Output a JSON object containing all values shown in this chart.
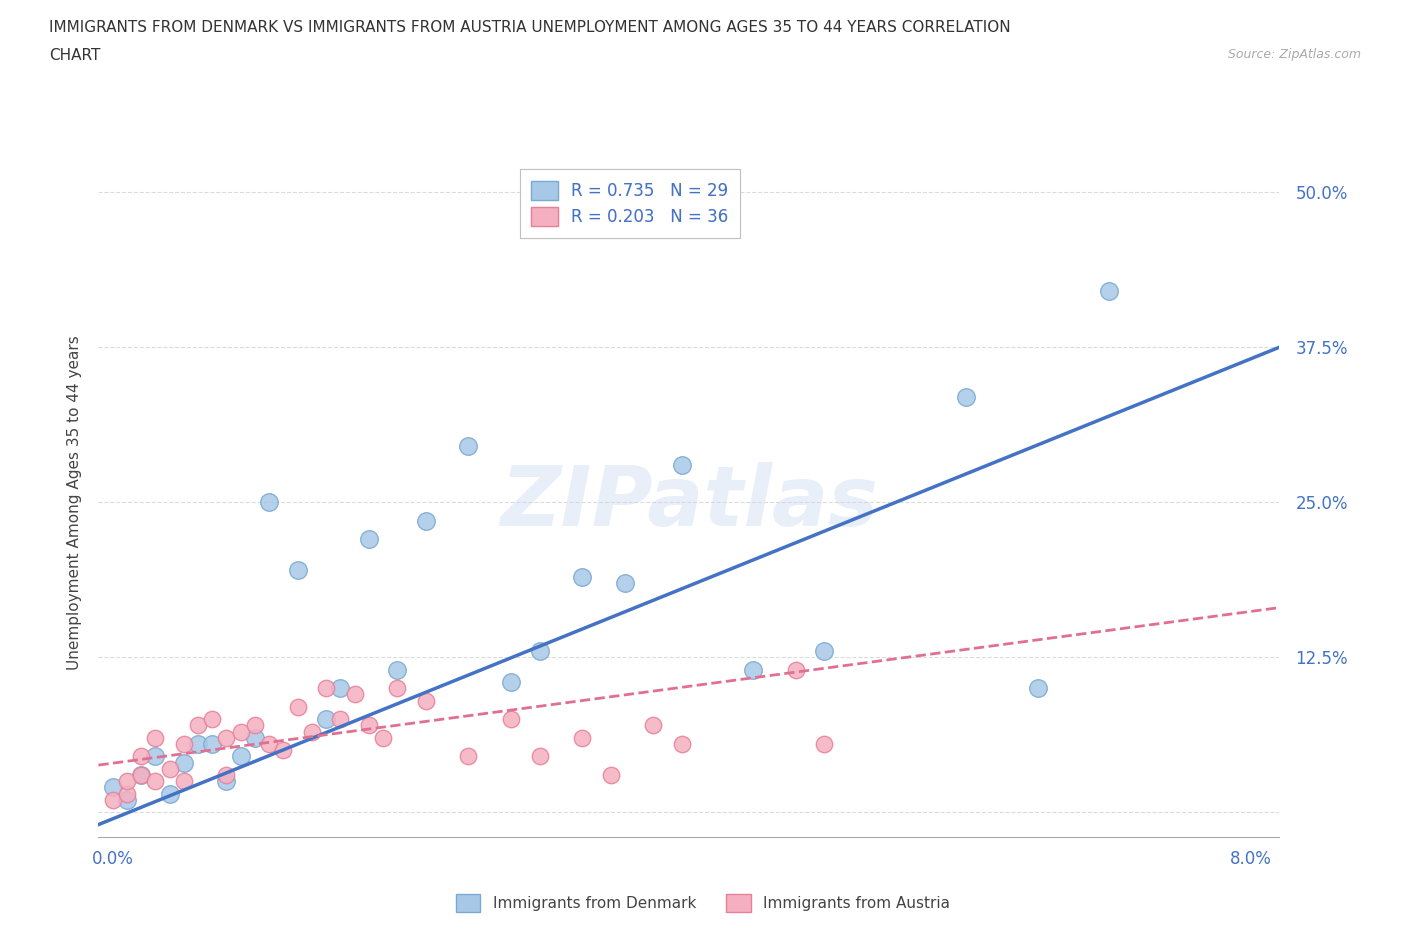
{
  "title_line1": "IMMIGRANTS FROM DENMARK VS IMMIGRANTS FROM AUSTRIA UNEMPLOYMENT AMONG AGES 35 TO 44 YEARS CORRELATION",
  "title_line2": "CHART",
  "source": "Source: ZipAtlas.com",
  "ylabel": "Unemployment Among Ages 35 to 44 years",
  "xlim": [
    -0.001,
    0.082
  ],
  "ylim": [
    -0.02,
    0.52
  ],
  "xticks": [
    0.0,
    0.01,
    0.02,
    0.03,
    0.04,
    0.05,
    0.06,
    0.07,
    0.08
  ],
  "xtick_labels": [
    "0.0%",
    "",
    "",
    "",
    "",
    "",
    "",
    "",
    "8.0%"
  ],
  "yticks": [
    0.0,
    0.125,
    0.25,
    0.375,
    0.5
  ],
  "ytick_labels": [
    "",
    "12.5%",
    "25.0%",
    "37.5%",
    "50.0%"
  ],
  "denmark_color": "#A8C8E8",
  "austria_color": "#F5B0C0",
  "denmark_edge_color": "#7AAAD0",
  "austria_edge_color": "#E88098",
  "denmark_R": 0.735,
  "denmark_N": 29,
  "austria_R": 0.203,
  "austria_N": 36,
  "denmark_scatter_x": [
    0.0,
    0.001,
    0.002,
    0.003,
    0.004,
    0.005,
    0.006,
    0.007,
    0.008,
    0.009,
    0.01,
    0.011,
    0.013,
    0.015,
    0.016,
    0.018,
    0.02,
    0.022,
    0.025,
    0.028,
    0.03,
    0.033,
    0.036,
    0.04,
    0.045,
    0.05,
    0.06,
    0.065,
    0.07
  ],
  "denmark_scatter_y": [
    0.02,
    0.01,
    0.03,
    0.045,
    0.015,
    0.04,
    0.055,
    0.055,
    0.025,
    0.045,
    0.06,
    0.25,
    0.195,
    0.075,
    0.1,
    0.22,
    0.115,
    0.235,
    0.295,
    0.105,
    0.13,
    0.19,
    0.185,
    0.28,
    0.115,
    0.13,
    0.335,
    0.1,
    0.42
  ],
  "austria_scatter_x": [
    0.0,
    0.001,
    0.001,
    0.002,
    0.002,
    0.003,
    0.003,
    0.004,
    0.005,
    0.005,
    0.006,
    0.007,
    0.008,
    0.008,
    0.009,
    0.01,
    0.011,
    0.012,
    0.013,
    0.014,
    0.015,
    0.016,
    0.017,
    0.018,
    0.019,
    0.02,
    0.022,
    0.025,
    0.028,
    0.03,
    0.033,
    0.035,
    0.038,
    0.04,
    0.048,
    0.05
  ],
  "austria_scatter_y": [
    0.01,
    0.015,
    0.025,
    0.03,
    0.045,
    0.025,
    0.06,
    0.035,
    0.025,
    0.055,
    0.07,
    0.075,
    0.03,
    0.06,
    0.065,
    0.07,
    0.055,
    0.05,
    0.085,
    0.065,
    0.1,
    0.075,
    0.095,
    0.07,
    0.06,
    0.1,
    0.09,
    0.045,
    0.075,
    0.045,
    0.06,
    0.03,
    0.07,
    0.055,
    0.115,
    0.055
  ],
  "denmark_trend_x0": -0.001,
  "denmark_trend_y0": -0.01,
  "denmark_trend_x1": 0.082,
  "denmark_trend_y1": 0.375,
  "austria_trend_x0": -0.001,
  "austria_trend_y0": 0.038,
  "austria_trend_x1": 0.082,
  "austria_trend_y1": 0.165,
  "trend_dk_color": "#4472C4",
  "trend_at_color": "#E07090",
  "background_color": "#ffffff",
  "grid_color": "#cccccc",
  "watermark_text": "ZIPatlas"
}
